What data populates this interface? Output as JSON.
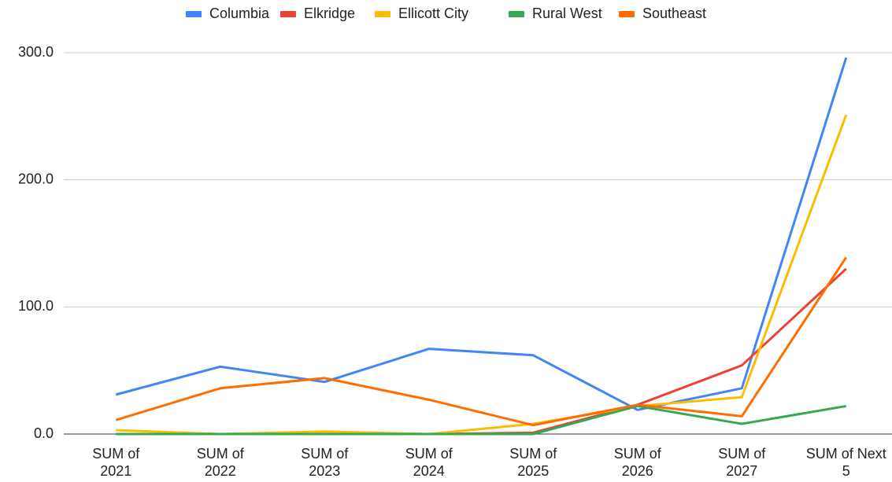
{
  "chart_data": {
    "type": "line",
    "categories": [
      "SUM of 2021",
      "SUM of 2022",
      "SUM of 2023",
      "SUM of 2024",
      "SUM of 2025",
      "SUM of 2026",
      "SUM of 2027",
      "SUM of Next 5"
    ],
    "series": [
      {
        "name": "Columbia",
        "color": "#4285f4",
        "values": [
          31,
          53,
          41,
          67,
          62,
          19,
          36,
          296
        ]
      },
      {
        "name": "Elkridge",
        "color": "#ea4335",
        "values": [
          0,
          0,
          0,
          0,
          1,
          23,
          54,
          130
        ]
      },
      {
        "name": "Ellicott City",
        "color": "#fbbc04",
        "values": [
          3,
          0,
          2,
          0,
          8,
          22,
          29,
          251
        ]
      },
      {
        "name": "Rural West",
        "color": "#34a853",
        "values": [
          0,
          0,
          0,
          0,
          0,
          22,
          8,
          22
        ]
      },
      {
        "name": "Southeast",
        "color": "#ff6d01",
        "values": [
          11,
          36,
          44,
          27,
          7,
          23,
          14,
          139
        ]
      }
    ],
    "ylim": [
      0,
      300
    ],
    "yticks": [
      {
        "value": 0,
        "label": "0.0"
      },
      {
        "value": 100,
        "label": "100.0"
      },
      {
        "value": 200,
        "label": "200.0"
      },
      {
        "value": 300,
        "label": "300.0"
      }
    ],
    "grid": true,
    "legend": "top"
  }
}
